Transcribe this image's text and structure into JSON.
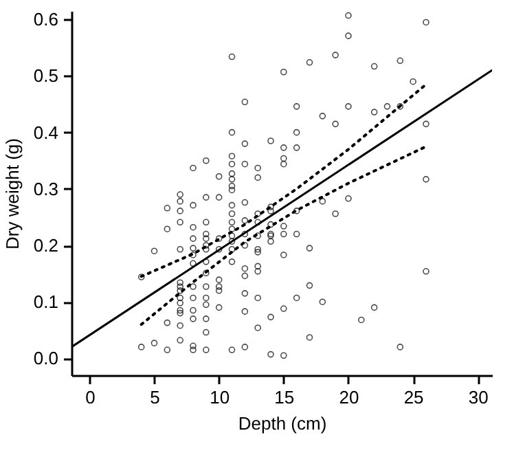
{
  "chart_data": {
    "type": "scatter",
    "xlabel": "Depth (cm)",
    "ylabel": "Dry weight (g)",
    "xlim": [
      -1.4,
      31.1
    ],
    "ylim": [
      -0.03,
      0.615
    ],
    "xticks": [
      0,
      5,
      10,
      15,
      20,
      25,
      30
    ],
    "yticks": [
      {
        "value": 0,
        "label": "0.0"
      },
      0.1,
      0.2,
      0.3,
      0.4,
      0.5,
      0.6
    ],
    "grid": false,
    "series": [
      {
        "color": "#000000",
        "marker": "circle",
        "x": [
          4,
          4,
          5,
          5,
          6,
          6,
          6,
          6,
          7,
          7,
          7,
          7,
          7,
          7,
          7,
          7,
          7,
          7,
          7,
          7,
          7,
          7,
          8,
          8,
          8,
          8,
          8,
          8,
          8,
          8,
          8,
          8,
          8,
          8,
          8,
          9,
          9,
          9,
          9,
          9,
          9,
          9,
          9,
          9,
          9,
          9,
          9,
          9,
          9,
          9,
          10,
          10,
          10,
          10,
          10,
          10,
          10,
          10,
          11,
          11,
          11,
          11,
          11,
          11,
          11,
          11,
          11,
          11,
          11,
          11,
          11,
          11,
          11,
          11,
          11,
          12,
          12,
          12,
          12,
          12,
          12,
          12,
          12,
          12,
          12,
          12,
          12,
          13,
          13,
          13,
          13,
          13,
          13,
          13,
          13,
          13,
          13,
          13,
          14,
          14,
          14,
          14,
          14,
          14,
          14,
          14,
          14,
          15,
          15,
          15,
          15,
          15,
          15,
          15,
          15,
          15,
          16,
          16,
          16,
          16,
          16,
          16,
          17,
          17,
          17,
          17,
          18,
          18,
          18,
          19,
          19,
          19,
          20,
          20,
          20,
          20,
          21,
          22,
          22,
          22,
          23,
          24,
          24,
          24,
          25,
          26,
          26,
          26,
          26
        ],
        "values": [
          0.144,
          0.02,
          0.19,
          0.027,
          0.266,
          0.229,
          0.063,
          0.015,
          0.29,
          0.278,
          0.261,
          0.241,
          0.193,
          0.134,
          0.127,
          0.12,
          0.107,
          0.098,
          0.085,
          0.08,
          0.058,
          0.032,
          0.337,
          0.271,
          0.232,
          0.212,
          0.195,
          0.183,
          0.168,
          0.127,
          0.107,
          0.085,
          0.07,
          0.022,
          0.015,
          0.35,
          0.285,
          0.241,
          0.22,
          0.212,
          0.2,
          0.193,
          0.171,
          0.151,
          0.127,
          0.107,
          0.095,
          0.07,
          0.046,
          0.015,
          0.322,
          0.285,
          0.212,
          0.193,
          0.139,
          0.127,
          0.12,
          0.09,
          0.534,
          0.4,
          0.358,
          0.344,
          0.327,
          0.317,
          0.305,
          0.298,
          0.271,
          0.256,
          0.241,
          0.229,
          0.217,
          0.207,
          0.193,
          0.171,
          0.015,
          0.454,
          0.38,
          0.344,
          0.276,
          0.244,
          0.22,
          0.2,
          0.159,
          0.146,
          0.115,
          0.083,
          0.02,
          0.337,
          0.32,
          0.256,
          0.241,
          0.217,
          0.193,
          0.188,
          0.163,
          0.154,
          0.107,
          0.054,
          0.385,
          0.268,
          0.261,
          0.237,
          0.22,
          0.207,
          0.217,
          0.073,
          0.007,
          0.507,
          0.373,
          0.354,
          0.344,
          0.234,
          0.22,
          0.183,
          0.088,
          0.005,
          0.446,
          0.4,
          0.373,
          0.261,
          0.22,
          0.107,
          0.524,
          0.195,
          0.129,
          0.037,
          0.429,
          0.278,
          0.1,
          0.537,
          0.415,
          0.256,
          0.607,
          0.571,
          0.446,
          0.283,
          0.068,
          0.517,
          0.436,
          0.09,
          0.446,
          0.527,
          0.446,
          0.02,
          0.49,
          0.595,
          0.415,
          0.317,
          0.154
        ]
      },
      {
        "type": "line",
        "color": "#000000",
        "line_style": "solid",
        "x": [
          -1.4,
          31.1
        ],
        "values": [
          0.02,
          0.51
        ]
      },
      {
        "type": "line",
        "color": "#000000",
        "line_style": "dotted",
        "x": [
          4,
          8,
          12,
          16,
          20,
          26
        ],
        "values": [
          0.145,
          0.185,
          0.237,
          0.3,
          0.37,
          0.485
        ]
      },
      {
        "type": "line",
        "color": "#000000",
        "line_style": "dotted",
        "x": [
          4,
          8,
          12,
          16,
          20,
          26
        ],
        "values": [
          0.06,
          0.135,
          0.206,
          0.262,
          0.31,
          0.375
        ]
      }
    ]
  }
}
